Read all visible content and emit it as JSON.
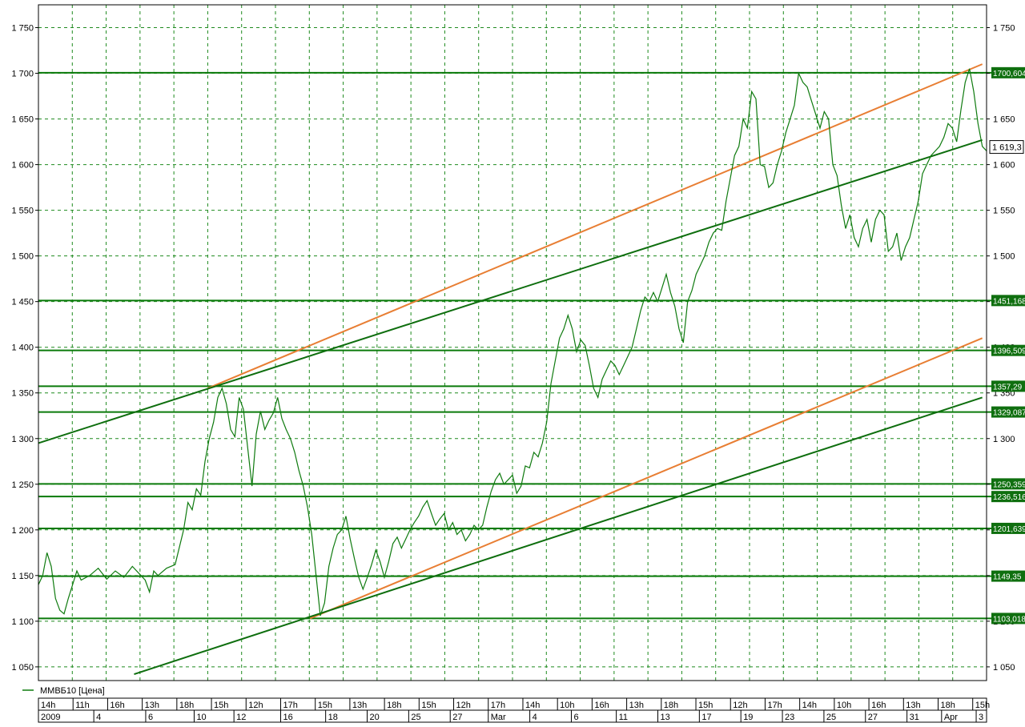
{
  "chart_data": {
    "type": "line",
    "title": "",
    "legend": {
      "label": "ММВБ10 [Цена]",
      "placement": "bottom-left"
    },
    "ylim": [
      1035,
      1775
    ],
    "grid": true,
    "y_ticks": [
      1050,
      1100,
      1150,
      1200,
      1250,
      1300,
      1350,
      1400,
      1450,
      1500,
      1550,
      1600,
      1650,
      1700,
      1750
    ],
    "y_tick_labels": [
      "1 050",
      "1 100",
      "1 150",
      "1 200",
      "1 250",
      "1 300",
      "1 350",
      "1 400",
      "1 450",
      "1 500",
      "1 550",
      "1 600",
      "1 650",
      "1 700",
      "1 750"
    ],
    "x_top_labels": [
      "14h",
      "11h",
      "16h",
      "13h",
      "18h",
      "15h",
      "12h",
      "17h",
      "15h",
      "13h",
      "18h",
      "15h",
      "12h",
      "17h",
      "14h",
      "10h",
      "16h",
      "13h",
      "18h",
      "15h",
      "12h",
      "17h",
      "14h",
      "10h",
      "16h",
      "13h",
      "18h",
      "15h"
    ],
    "x_bottom_labels": [
      "2009",
      "4",
      "6",
      "10",
      "12",
      "16",
      "18",
      "20",
      "25",
      "27",
      "Mar",
      "4",
      "6",
      "11",
      "13",
      "17",
      "19",
      "23",
      "25",
      "27",
      "31",
      "Apr",
      "3"
    ],
    "horizontal_levels": [
      {
        "value": 1700.604,
        "label": "1700,604"
      },
      {
        "value": 1451.168,
        "label": "1451,168"
      },
      {
        "value": 1396.509,
        "label": "1396,509"
      },
      {
        "value": 1357.29,
        "label": "1357,29"
      },
      {
        "value": 1329.087,
        "label": "1329,087"
      },
      {
        "value": 1250.359,
        "label": "1250,359"
      },
      {
        "value": 1236.516,
        "label": "1236,516"
      },
      {
        "value": 1201.639,
        "label": "1201,639"
      },
      {
        "value": 1149.35,
        "label": "1149,35"
      },
      {
        "value": 1103.018,
        "label": "1103,018"
      }
    ],
    "last_price": {
      "value": 1619.3,
      "label": "1 619,3"
    },
    "series": [
      {
        "values": [
          [
            0,
            1140
          ],
          [
            0.5,
            1150
          ],
          [
            1,
            1175
          ],
          [
            1.5,
            1160
          ],
          [
            2,
            1125
          ],
          [
            2.5,
            1112
          ],
          [
            3,
            1108
          ],
          [
            3.5,
            1125
          ],
          [
            4,
            1140
          ],
          [
            4.5,
            1155
          ],
          [
            5,
            1145
          ],
          [
            6,
            1150
          ],
          [
            7,
            1158
          ],
          [
            8,
            1146
          ],
          [
            9,
            1155
          ],
          [
            10,
            1148
          ],
          [
            11,
            1160
          ],
          [
            12,
            1150
          ],
          [
            12.5,
            1145
          ],
          [
            13,
            1132
          ],
          [
            13.5,
            1155
          ],
          [
            14,
            1150
          ],
          [
            15,
            1158
          ],
          [
            16,
            1162
          ],
          [
            17,
            1200
          ],
          [
            17.5,
            1230
          ],
          [
            18,
            1222
          ],
          [
            18.5,
            1245
          ],
          [
            19,
            1238
          ],
          [
            19.5,
            1275
          ],
          [
            20,
            1300
          ],
          [
            20.5,
            1318
          ],
          [
            21,
            1345
          ],
          [
            21.5,
            1355
          ],
          [
            22,
            1338
          ],
          [
            22.5,
            1310
          ],
          [
            23,
            1302
          ],
          [
            23.5,
            1345
          ],
          [
            24,
            1332
          ],
          [
            24.5,
            1290
          ],
          [
            25,
            1248
          ],
          [
            25.5,
            1305
          ],
          [
            26,
            1330
          ],
          [
            26.5,
            1310
          ],
          [
            27,
            1320
          ],
          [
            27.5,
            1328
          ],
          [
            28,
            1345
          ],
          [
            28.5,
            1322
          ],
          [
            29,
            1310
          ],
          [
            29.5,
            1300
          ],
          [
            30,
            1285
          ],
          [
            30.5,
            1265
          ],
          [
            31,
            1248
          ],
          [
            31.5,
            1225
          ],
          [
            32,
            1195
          ],
          [
            32.5,
            1150
          ],
          [
            33,
            1106
          ],
          [
            33.5,
            1120
          ],
          [
            34,
            1160
          ],
          [
            34.5,
            1180
          ],
          [
            35,
            1195
          ],
          [
            35.5,
            1200
          ],
          [
            36,
            1215
          ],
          [
            36.5,
            1190
          ],
          [
            37,
            1168
          ],
          [
            37.5,
            1148
          ],
          [
            38,
            1135
          ],
          [
            38.5,
            1148
          ],
          [
            39,
            1162
          ],
          [
            39.5,
            1178
          ],
          [
            40,
            1165
          ],
          [
            40.5,
            1148
          ],
          [
            41,
            1165
          ],
          [
            41.5,
            1185
          ],
          [
            42,
            1192
          ],
          [
            42.5,
            1180
          ],
          [
            43,
            1190
          ],
          [
            43.5,
            1200
          ],
          [
            44,
            1208
          ],
          [
            44.5,
            1215
          ],
          [
            45,
            1225
          ],
          [
            45.5,
            1232
          ],
          [
            46,
            1218
          ],
          [
            46.5,
            1205
          ],
          [
            47,
            1212
          ],
          [
            47.5,
            1218
          ],
          [
            48,
            1200
          ],
          [
            48.5,
            1208
          ],
          [
            49,
            1195
          ],
          [
            49.5,
            1200
          ],
          [
            50,
            1188
          ],
          [
            50.5,
            1195
          ],
          [
            51,
            1205
          ],
          [
            51.5,
            1200
          ],
          [
            52,
            1205
          ],
          [
            52.5,
            1225
          ],
          [
            53,
            1242
          ],
          [
            53.5,
            1255
          ],
          [
            54,
            1262
          ],
          [
            54.5,
            1250
          ],
          [
            55,
            1255
          ],
          [
            55.5,
            1260
          ],
          [
            56,
            1240
          ],
          [
            56.5,
            1248
          ],
          [
            57,
            1270
          ],
          [
            57.5,
            1268
          ],
          [
            58,
            1285
          ],
          [
            58.5,
            1280
          ],
          [
            59,
            1295
          ],
          [
            59.5,
            1318
          ],
          [
            60,
            1360
          ],
          [
            60.5,
            1385
          ],
          [
            61,
            1410
          ],
          [
            61.5,
            1420
          ],
          [
            62,
            1435
          ],
          [
            62.5,
            1420
          ],
          [
            63,
            1395
          ],
          [
            63.5,
            1408
          ],
          [
            64,
            1402
          ],
          [
            64.5,
            1380
          ],
          [
            65,
            1355
          ],
          [
            65.5,
            1345
          ],
          [
            66,
            1365
          ],
          [
            66.5,
            1375
          ],
          [
            67,
            1385
          ],
          [
            67.5,
            1380
          ],
          [
            68,
            1370
          ],
          [
            68.5,
            1380
          ],
          [
            69,
            1390
          ],
          [
            69.5,
            1400
          ],
          [
            70,
            1420
          ],
          [
            70.5,
            1440
          ],
          [
            71,
            1455
          ],
          [
            71.5,
            1450
          ],
          [
            72,
            1460
          ],
          [
            72.5,
            1450
          ],
          [
            73,
            1465
          ],
          [
            73.5,
            1480
          ],
          [
            74,
            1460
          ],
          [
            74.5,
            1445
          ],
          [
            75,
            1420
          ],
          [
            75.5,
            1405
          ],
          [
            76,
            1450
          ],
          [
            76.5,
            1462
          ],
          [
            77,
            1480
          ],
          [
            77.5,
            1490
          ],
          [
            78,
            1500
          ],
          [
            78.5,
            1515
          ],
          [
            79,
            1525
          ],
          [
            79.5,
            1530
          ],
          [
            80,
            1528
          ],
          [
            80.5,
            1560
          ],
          [
            81,
            1585
          ],
          [
            81.5,
            1610
          ],
          [
            82,
            1620
          ],
          [
            82.5,
            1650
          ],
          [
            83,
            1640
          ],
          [
            83.5,
            1680
          ],
          [
            84,
            1672
          ],
          [
            84.5,
            1600
          ],
          [
            85,
            1598
          ],
          [
            85.5,
            1575
          ],
          [
            86,
            1580
          ],
          [
            86.5,
            1600
          ],
          [
            87,
            1615
          ],
          [
            87.5,
            1635
          ],
          [
            88,
            1650
          ],
          [
            88.5,
            1665
          ],
          [
            89,
            1700
          ],
          [
            89.5,
            1690
          ],
          [
            90,
            1685
          ],
          [
            90.5,
            1670
          ],
          [
            91,
            1655
          ],
          [
            91.5,
            1640
          ],
          [
            92,
            1658
          ],
          [
            92.5,
            1650
          ],
          [
            93,
            1600
          ],
          [
            93.5,
            1588
          ],
          [
            94,
            1555
          ],
          [
            94.5,
            1530
          ],
          [
            95,
            1545
          ],
          [
            95.5,
            1520
          ],
          [
            96,
            1510
          ],
          [
            96.5,
            1530
          ],
          [
            97,
            1540
          ],
          [
            97.5,
            1515
          ],
          [
            98,
            1540
          ],
          [
            98.5,
            1550
          ],
          [
            99,
            1545
          ],
          [
            99.5,
            1505
          ],
          [
            100,
            1510
          ],
          [
            100.5,
            1525
          ],
          [
            101,
            1495
          ],
          [
            101.5,
            1510
          ],
          [
            102,
            1520
          ],
          [
            102.5,
            1540
          ],
          [
            103,
            1560
          ],
          [
            103.5,
            1590
          ],
          [
            104,
            1600
          ],
          [
            104.5,
            1610
          ],
          [
            105,
            1615
          ],
          [
            105.5,
            1620
          ],
          [
            106,
            1630
          ],
          [
            106.5,
            1645
          ],
          [
            107,
            1640
          ],
          [
            107.5,
            1625
          ],
          [
            108,
            1660
          ],
          [
            108.5,
            1690
          ],
          [
            109,
            1705
          ],
          [
            109.5,
            1680
          ],
          [
            110,
            1645
          ],
          [
            110.5,
            1620
          ],
          [
            111,
            1615
          ]
        ]
      }
    ],
    "trend_lines": [
      {
        "color": "#e87e33",
        "from": [
          19.8,
          1355
        ],
        "to": [
          110.5,
          1710
        ]
      },
      {
        "color": "#0e6e0e",
        "from": [
          0,
          1295
        ],
        "to": [
          110.5,
          1627
        ]
      },
      {
        "color": "#e87e33",
        "from": [
          31.8,
          1103
        ],
        "to": [
          110.5,
          1410
        ]
      },
      {
        "color": "#0e6e0e",
        "from": [
          11.2,
          1042
        ],
        "to": [
          110.5,
          1345
        ]
      }
    ]
  },
  "colors": {
    "price": "#0e7a0e",
    "level": "#0a7a0a",
    "trend_orange": "#e87e33",
    "trend_green": "#0e6e0e",
    "label_bg": "#0f6f0f",
    "grid": "#1f8a1f"
  }
}
